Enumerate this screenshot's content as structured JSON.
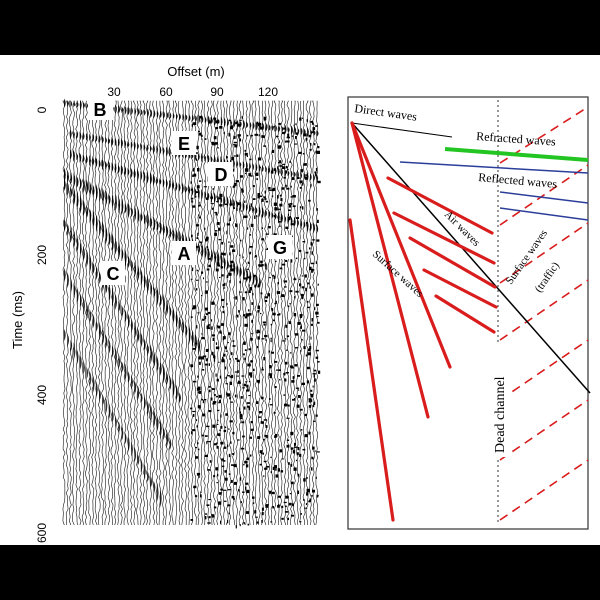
{
  "left_panel": {
    "x_axis_title": "Offset (m)",
    "x_ticks": [
      "30",
      "60",
      "90",
      "120"
    ],
    "y_axis_title": "Time (ms)",
    "y_ticks": [
      "0",
      "200",
      "400",
      "600"
    ],
    "labels": [
      "B",
      "E",
      "D",
      "A",
      "G",
      "C"
    ]
  },
  "right_panel": {
    "annotations": {
      "direct_waves": "Direct waves",
      "refracted_waves": "Refracted waves",
      "reflected_waves": "Reflected waves",
      "air_waves": "Air waves",
      "surface_waves": "Surface waves",
      "surface_waves_traffic": "Surface waves",
      "traffic": "(traffic)",
      "dead_channel": "Dead channel"
    },
    "colors": {
      "refracted": "#22c522",
      "reflected": "#2b3e9a",
      "surface": "#d91c1c",
      "air": "#000000"
    }
  }
}
